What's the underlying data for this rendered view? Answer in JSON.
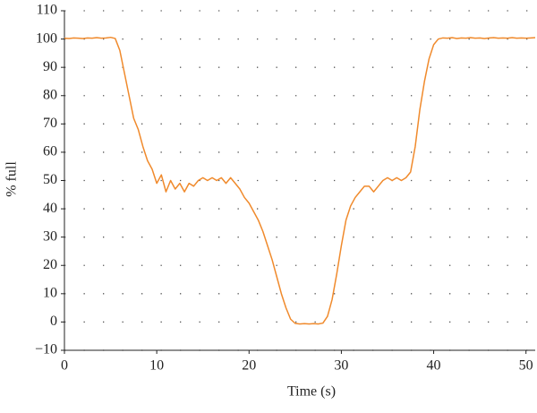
{
  "chart_data": {
    "type": "line",
    "x_label": "Time (s)",
    "y_label": "% full",
    "color": "#f08a2c",
    "x": [
      0,
      0.5,
      1,
      1.5,
      2,
      2.5,
      3,
      3.5,
      4,
      4.5,
      5,
      5.5,
      6,
      6.5,
      7,
      7.5,
      8,
      8.5,
      9,
      9.5,
      10,
      10.5,
      11,
      11.5,
      12,
      12.5,
      13,
      13.5,
      14,
      14.5,
      15,
      15.5,
      16,
      16.5,
      17,
      17.5,
      18,
      18.5,
      19,
      19.5,
      20,
      20.5,
      21,
      21.5,
      22,
      22.5,
      23,
      23.5,
      24,
      24.5,
      25,
      25.5,
      26,
      26.5,
      27,
      27.5,
      28,
      28.5,
      29,
      29.5,
      30,
      30.5,
      31,
      31.5,
      32,
      32.5,
      33,
      33.5,
      34,
      34.5,
      35,
      35.5,
      36,
      36.5,
      37,
      37.5,
      38,
      38.5,
      39,
      39.5,
      40,
      40.5,
      41,
      41.5,
      42,
      42.5,
      43,
      43.5,
      44,
      44.5,
      45,
      45.5,
      46,
      46.5,
      47,
      47.5,
      48,
      48.5,
      49,
      49.5,
      50,
      50.5,
      51
    ],
    "values": [
      100.3,
      100.2,
      100.4,
      100.3,
      100.2,
      100.4,
      100.3,
      100.5,
      100.3,
      100.4,
      100.6,
      100.2,
      96,
      88,
      80,
      72,
      68,
      62,
      57,
      54,
      49,
      52,
      46,
      50,
      47,
      49,
      46,
      49,
      48,
      50,
      51,
      50,
      51,
      50,
      51,
      49,
      51,
      49,
      47,
      44,
      42,
      39,
      36,
      32,
      27,
      22,
      16,
      10,
      5,
      1,
      -0.5,
      -0.7,
      -0.6,
      -0.7,
      -0.6,
      -0.7,
      -0.4,
      2,
      8,
      17,
      27,
      36,
      41,
      44,
      46,
      48,
      48,
      46,
      48,
      50,
      51,
      50,
      51,
      50,
      51,
      53,
      62,
      75,
      85,
      93,
      98,
      100,
      100.4,
      100.3,
      100.5,
      100.2,
      100.4,
      100.3,
      100.5,
      100.3,
      100.4,
      100.2,
      100.4,
      100.5,
      100.3,
      100.4,
      100.3,
      100.5,
      100.3,
      100.4,
      100.3,
      100.4,
      100.5
    ],
    "xlim": [
      0,
      51
    ],
    "xticks": [
      0,
      10,
      20,
      30,
      40,
      50
    ],
    "ylim": [
      -10,
      110
    ],
    "yticks": [
      {
        "value": -10,
        "label": "−10"
      },
      0,
      10,
      20,
      30,
      40,
      50,
      60,
      70,
      80,
      90,
      100,
      110
    ],
    "grid": true
  }
}
